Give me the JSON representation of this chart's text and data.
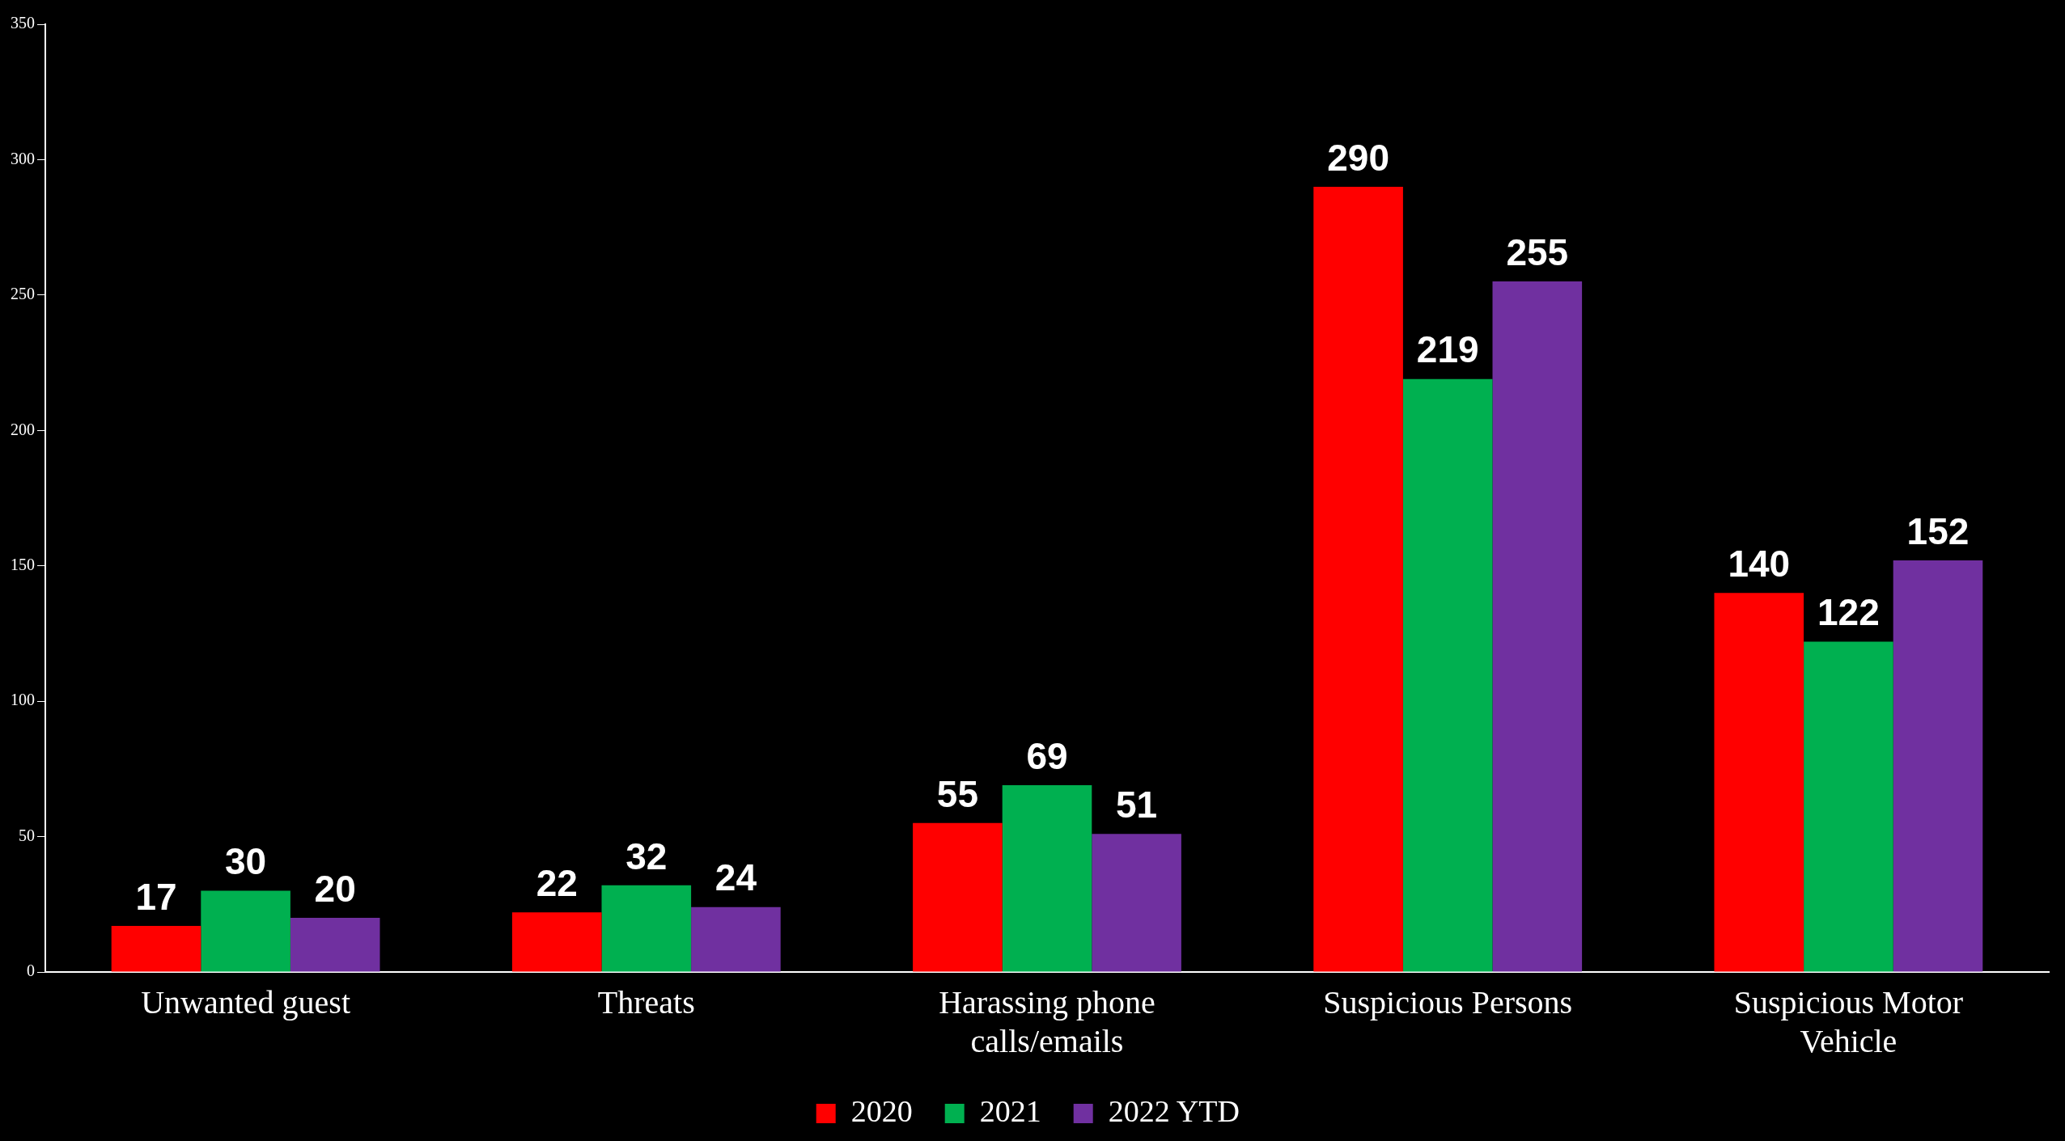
{
  "chart_data": {
    "type": "bar",
    "categories": [
      "Unwanted guest",
      "Threats",
      "Harassing phone calls/emails",
      "Suspicious Persons",
      "Suspicious Motor Vehicle"
    ],
    "series": [
      {
        "name": "2020",
        "color": "#ff0000",
        "values": [
          17,
          22,
          55,
          290,
          140
        ]
      },
      {
        "name": "2021",
        "color": "#00b050",
        "values": [
          30,
          32,
          69,
          219,
          122
        ]
      },
      {
        "name": "2022 YTD",
        "color": "#7030a0",
        "values": [
          20,
          24,
          51,
          255,
          152
        ]
      }
    ],
    "ylim": [
      0,
      350
    ],
    "yticks": [
      0,
      50,
      100,
      150,
      200,
      250,
      300,
      350
    ],
    "grid": false,
    "legend": "bottom",
    "data_labels": true
  }
}
